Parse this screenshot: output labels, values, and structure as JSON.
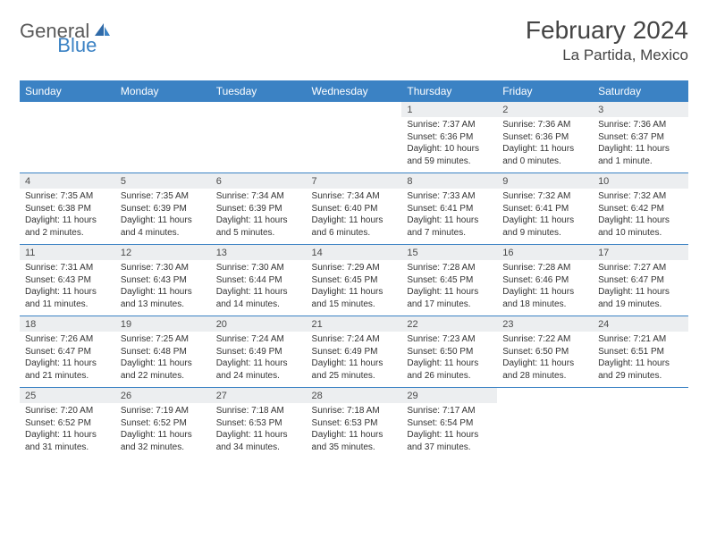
{
  "logo": {
    "text1": "General",
    "text2": "Blue"
  },
  "title": "February 2024",
  "location": "La Partida, Mexico",
  "colors": {
    "brand_blue": "#3b82c4",
    "header_gray": "#eceef0",
    "text_gray": "#444444",
    "body_text": "#333333",
    "background": "#ffffff"
  },
  "typography": {
    "title_fontsize": 28,
    "location_fontsize": 17,
    "dayhead_fontsize": 12,
    "daynum_fontsize": 11,
    "detail_fontsize": 10
  },
  "day_headers": [
    "Sunday",
    "Monday",
    "Tuesday",
    "Wednesday",
    "Thursday",
    "Friday",
    "Saturday"
  ],
  "weeks": [
    {
      "days": [
        null,
        null,
        null,
        null,
        {
          "num": "1",
          "sunrise": "Sunrise: 7:37 AM",
          "sunset": "Sunset: 6:36 PM",
          "daylight": "Daylight: 10 hours and 59 minutes."
        },
        {
          "num": "2",
          "sunrise": "Sunrise: 7:36 AM",
          "sunset": "Sunset: 6:36 PM",
          "daylight": "Daylight: 11 hours and 0 minutes."
        },
        {
          "num": "3",
          "sunrise": "Sunrise: 7:36 AM",
          "sunset": "Sunset: 6:37 PM",
          "daylight": "Daylight: 11 hours and 1 minute."
        }
      ]
    },
    {
      "days": [
        {
          "num": "4",
          "sunrise": "Sunrise: 7:35 AM",
          "sunset": "Sunset: 6:38 PM",
          "daylight": "Daylight: 11 hours and 2 minutes."
        },
        {
          "num": "5",
          "sunrise": "Sunrise: 7:35 AM",
          "sunset": "Sunset: 6:39 PM",
          "daylight": "Daylight: 11 hours and 4 minutes."
        },
        {
          "num": "6",
          "sunrise": "Sunrise: 7:34 AM",
          "sunset": "Sunset: 6:39 PM",
          "daylight": "Daylight: 11 hours and 5 minutes."
        },
        {
          "num": "7",
          "sunrise": "Sunrise: 7:34 AM",
          "sunset": "Sunset: 6:40 PM",
          "daylight": "Daylight: 11 hours and 6 minutes."
        },
        {
          "num": "8",
          "sunrise": "Sunrise: 7:33 AM",
          "sunset": "Sunset: 6:41 PM",
          "daylight": "Daylight: 11 hours and 7 minutes."
        },
        {
          "num": "9",
          "sunrise": "Sunrise: 7:32 AM",
          "sunset": "Sunset: 6:41 PM",
          "daylight": "Daylight: 11 hours and 9 minutes."
        },
        {
          "num": "10",
          "sunrise": "Sunrise: 7:32 AM",
          "sunset": "Sunset: 6:42 PM",
          "daylight": "Daylight: 11 hours and 10 minutes."
        }
      ]
    },
    {
      "days": [
        {
          "num": "11",
          "sunrise": "Sunrise: 7:31 AM",
          "sunset": "Sunset: 6:43 PM",
          "daylight": "Daylight: 11 hours and 11 minutes."
        },
        {
          "num": "12",
          "sunrise": "Sunrise: 7:30 AM",
          "sunset": "Sunset: 6:43 PM",
          "daylight": "Daylight: 11 hours and 13 minutes."
        },
        {
          "num": "13",
          "sunrise": "Sunrise: 7:30 AM",
          "sunset": "Sunset: 6:44 PM",
          "daylight": "Daylight: 11 hours and 14 minutes."
        },
        {
          "num": "14",
          "sunrise": "Sunrise: 7:29 AM",
          "sunset": "Sunset: 6:45 PM",
          "daylight": "Daylight: 11 hours and 15 minutes."
        },
        {
          "num": "15",
          "sunrise": "Sunrise: 7:28 AM",
          "sunset": "Sunset: 6:45 PM",
          "daylight": "Daylight: 11 hours and 17 minutes."
        },
        {
          "num": "16",
          "sunrise": "Sunrise: 7:28 AM",
          "sunset": "Sunset: 6:46 PM",
          "daylight": "Daylight: 11 hours and 18 minutes."
        },
        {
          "num": "17",
          "sunrise": "Sunrise: 7:27 AM",
          "sunset": "Sunset: 6:47 PM",
          "daylight": "Daylight: 11 hours and 19 minutes."
        }
      ]
    },
    {
      "days": [
        {
          "num": "18",
          "sunrise": "Sunrise: 7:26 AM",
          "sunset": "Sunset: 6:47 PM",
          "daylight": "Daylight: 11 hours and 21 minutes."
        },
        {
          "num": "19",
          "sunrise": "Sunrise: 7:25 AM",
          "sunset": "Sunset: 6:48 PM",
          "daylight": "Daylight: 11 hours and 22 minutes."
        },
        {
          "num": "20",
          "sunrise": "Sunrise: 7:24 AM",
          "sunset": "Sunset: 6:49 PM",
          "daylight": "Daylight: 11 hours and 24 minutes."
        },
        {
          "num": "21",
          "sunrise": "Sunrise: 7:24 AM",
          "sunset": "Sunset: 6:49 PM",
          "daylight": "Daylight: 11 hours and 25 minutes."
        },
        {
          "num": "22",
          "sunrise": "Sunrise: 7:23 AM",
          "sunset": "Sunset: 6:50 PM",
          "daylight": "Daylight: 11 hours and 26 minutes."
        },
        {
          "num": "23",
          "sunrise": "Sunrise: 7:22 AM",
          "sunset": "Sunset: 6:50 PM",
          "daylight": "Daylight: 11 hours and 28 minutes."
        },
        {
          "num": "24",
          "sunrise": "Sunrise: 7:21 AM",
          "sunset": "Sunset: 6:51 PM",
          "daylight": "Daylight: 11 hours and 29 minutes."
        }
      ]
    },
    {
      "days": [
        {
          "num": "25",
          "sunrise": "Sunrise: 7:20 AM",
          "sunset": "Sunset: 6:52 PM",
          "daylight": "Daylight: 11 hours and 31 minutes."
        },
        {
          "num": "26",
          "sunrise": "Sunrise: 7:19 AM",
          "sunset": "Sunset: 6:52 PM",
          "daylight": "Daylight: 11 hours and 32 minutes."
        },
        {
          "num": "27",
          "sunrise": "Sunrise: 7:18 AM",
          "sunset": "Sunset: 6:53 PM",
          "daylight": "Daylight: 11 hours and 34 minutes."
        },
        {
          "num": "28",
          "sunrise": "Sunrise: 7:18 AM",
          "sunset": "Sunset: 6:53 PM",
          "daylight": "Daylight: 11 hours and 35 minutes."
        },
        {
          "num": "29",
          "sunrise": "Sunrise: 7:17 AM",
          "sunset": "Sunset: 6:54 PM",
          "daylight": "Daylight: 11 hours and 37 minutes."
        },
        null,
        null
      ]
    }
  ]
}
